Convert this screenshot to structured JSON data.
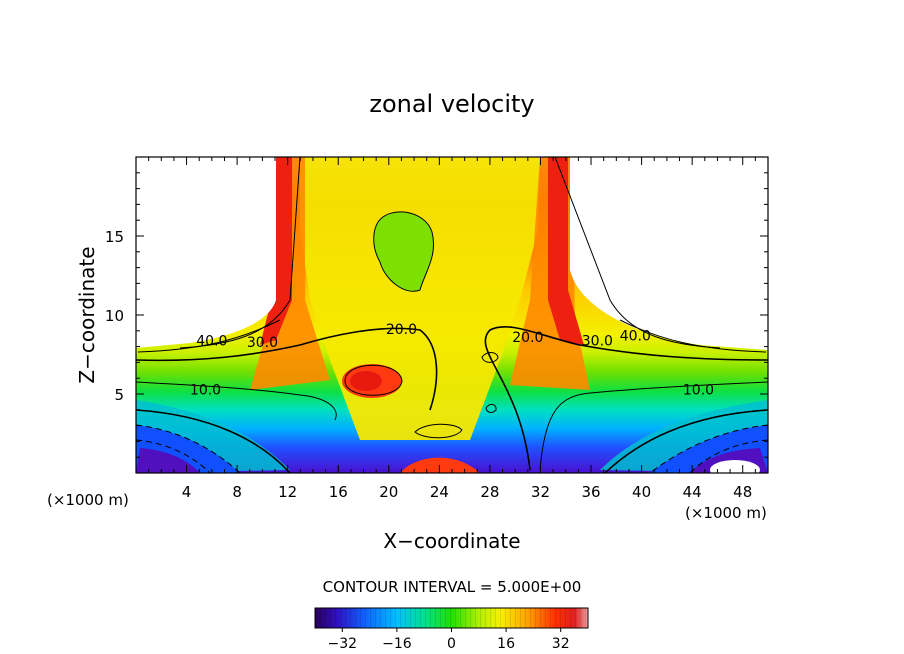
{
  "chart_data": {
    "type": "contour",
    "title": "zonal velocity",
    "xlabel": "X−coordinate",
    "ylabel": "Z−coordinate",
    "x_unit_left": "(×1000 m)",
    "x_unit_right": "(×1000 m)",
    "xlim": [
      0,
      50
    ],
    "ylim": [
      0,
      20
    ],
    "xticks": [
      4,
      8,
      12,
      16,
      20,
      24,
      28,
      32,
      36,
      40,
      44,
      48
    ],
    "xticklabels": [
      "4",
      "8",
      "12",
      "16",
      "20",
      "24",
      "28",
      "32",
      "36",
      "40",
      "44",
      "48"
    ],
    "yticks": [
      5,
      10,
      15
    ],
    "yticklabels": [
      "5",
      "10",
      "15"
    ],
    "contour_interval_text": "CONTOUR INTERVAL = 5.000E+00",
    "contour_labels": [
      {
        "text": "40.0",
        "x": 6.0,
        "z": 8.4
      },
      {
        "text": "30.0",
        "x": 10.0,
        "z": 8.3
      },
      {
        "text": "20.0",
        "x": 21.0,
        "z": 9.1
      },
      {
        "text": "20.0",
        "x": 31.0,
        "z": 8.6
      },
      {
        "text": "30.0",
        "x": 36.5,
        "z": 8.4
      },
      {
        "text": "40.0",
        "x": 39.5,
        "z": 8.7
      },
      {
        "text": "10.0",
        "x": 5.5,
        "z": 5.3
      },
      {
        "text": "10.0",
        "x": 44.5,
        "z": 5.3
      }
    ],
    "field_features": [
      {
        "name": "white masked region upper-left",
        "x": [
          0,
          11
        ],
        "z": [
          8,
          20
        ]
      },
      {
        "name": "white masked region upper-right",
        "x": [
          37,
          50
        ],
        "z": [
          8,
          20
        ]
      },
      {
        "name": "strong negative cores near bottom",
        "x": [
          2,
          45
        ],
        "z": [
          0,
          3
        ],
        "min": -35
      },
      {
        "name": "green jet core aloft",
        "x": 22,
        "z": 14,
        "value": 10
      },
      {
        "name": "red core",
        "x": 19,
        "z": 5.6,
        "value": 30
      }
    ],
    "colorbar": {
      "min": -40,
      "max": 40,
      "ticks": [
        -32,
        -16,
        0,
        16,
        32
      ],
      "ticklabels": [
        "−32",
        "−16",
        "0",
        "16",
        "32"
      ]
    }
  }
}
